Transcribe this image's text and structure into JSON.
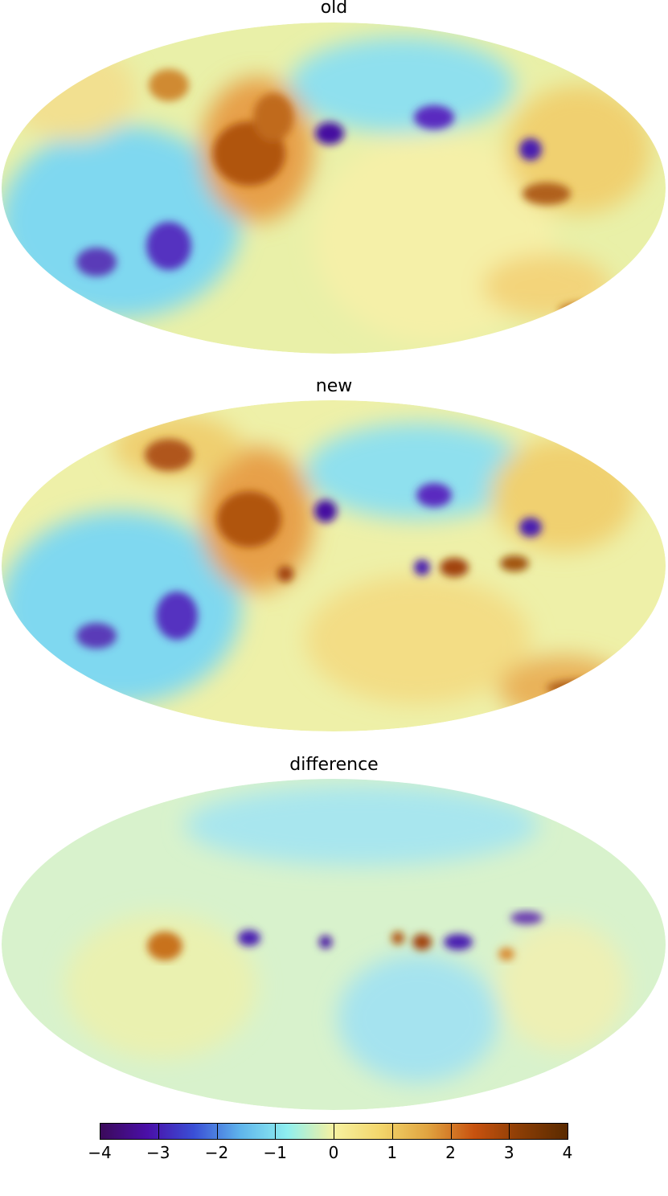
{
  "panels": [
    {
      "title": "old"
    },
    {
      "title": "new"
    },
    {
      "title": "difference"
    }
  ],
  "colorbar": {
    "ticks": [
      "−4",
      "−3",
      "−2",
      "−1",
      "0",
      "1",
      "2",
      "3",
      "4"
    ],
    "min": -4,
    "max": 4,
    "colors": [
      "#3b0a5a",
      "#4a0fa8",
      "#3a4fd6",
      "#5fb5ec",
      "#8fefef",
      "#f6f1a0",
      "#f3d66b",
      "#e0a440",
      "#c8520f",
      "#8a3d05",
      "#5a2a00"
    ]
  }
}
